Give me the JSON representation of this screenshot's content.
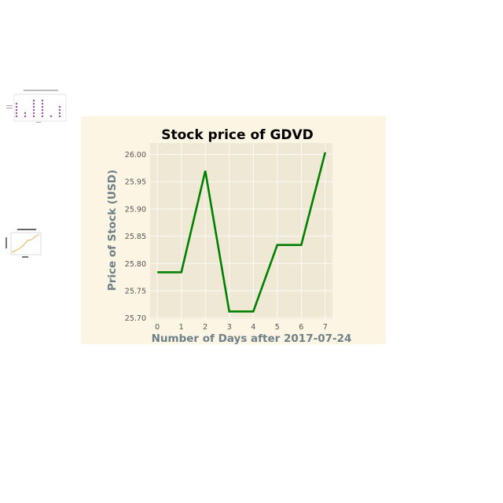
{
  "chart_data": {
    "type": "line",
    "title": "Stock price of GDVD",
    "xlabel": "Number of Days after 2017-07-24",
    "ylabel": "Price of Stock (USD)",
    "x": [
      0,
      1,
      2,
      3,
      4,
      5,
      6,
      7
    ],
    "x_tick_labels": [
      "0",
      "1",
      "2",
      "3",
      "4",
      "5",
      "6",
      "7"
    ],
    "y_tick_labels": [
      "25.70",
      "25.75",
      "25.80",
      "25.85",
      "25.90",
      "25.95",
      "26.00"
    ],
    "y_ticks": [
      25.7,
      25.75,
      25.8,
      25.85,
      25.9,
      25.95,
      26.0
    ],
    "xlim": [
      -0.3,
      7.3
    ],
    "ylim": [
      25.698,
      26.021
    ],
    "series": [
      {
        "values": [
          25.784,
          25.784,
          25.97,
          25.712,
          25.712,
          25.834,
          25.834,
          26.004
        ]
      }
    ],
    "line_color": "#008000",
    "plot_background": "#efe8d5",
    "figure_background": "#fcf5e4",
    "grid": true
  }
}
